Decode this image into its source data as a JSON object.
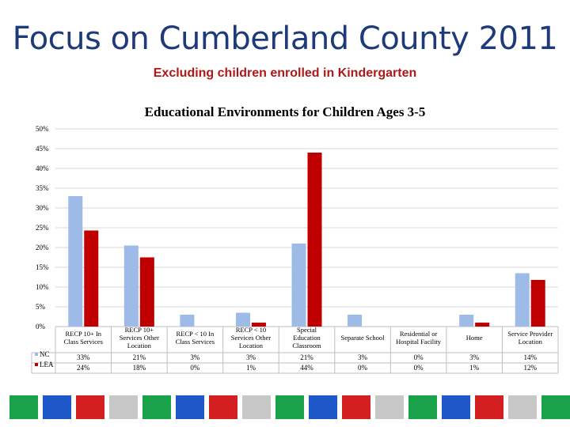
{
  "slide": {
    "title": "Focus on Cumberland County 2011",
    "subtitle": "Excluding children enrolled in Kindergarten"
  },
  "colors": {
    "nc": "#9dbbe6",
    "lea": "#c00000",
    "grid": "#d9d9d9"
  },
  "chart_data": {
    "type": "bar",
    "title": "Educational Environments for Children Ages 3-5",
    "ylim": [
      0,
      50
    ],
    "yticks": [
      "0%",
      "5%",
      "10%",
      "15%",
      "20%",
      "25%",
      "30%",
      "35%",
      "40%",
      "45%",
      "50%"
    ],
    "categories": [
      [
        "RECP 10+ In",
        "Class Services"
      ],
      [
        "RECP 10+",
        "Services Other",
        "Location"
      ],
      [
        "RECP < 10 In",
        "Class Services"
      ],
      [
        "RECP < 10",
        "Services Other",
        "Location"
      ],
      [
        "Special",
        "Education",
        "Classroom"
      ],
      [
        "Separate School"
      ],
      [
        "Residential or",
        "Hospital Facility"
      ],
      [
        "Home"
      ],
      [
        "Service Provider",
        "Location"
      ]
    ],
    "series": [
      {
        "name": "NC",
        "values": [
          33,
          20.5,
          3,
          3.5,
          21,
          3,
          0,
          3,
          13.5
        ],
        "labels": [
          "33%",
          "21%",
          "3%",
          "3%",
          "21%",
          "3%",
          "0%",
          "3%",
          "14%"
        ]
      },
      {
        "name": "LEA",
        "values": [
          24.3,
          17.5,
          0,
          1,
          44,
          0,
          0,
          1,
          11.8
        ],
        "labels": [
          "24%",
          "18%",
          "0%",
          "1%",
          "44%",
          "0%",
          "0%",
          "1%",
          "12%"
        ]
      }
    ]
  },
  "footer_tiles": [
    "#1aa24a",
    "#1e57c8",
    "#d42020",
    "#c8c8c8",
    "#1aa24a",
    "#1e57c8",
    "#d42020",
    "#c8c8c8",
    "#1aa24a",
    "#1e57c8",
    "#d42020",
    "#c8c8c8",
    "#1aa24a",
    "#1e57c8",
    "#d42020",
    "#c8c8c8",
    "#1aa24a"
  ]
}
